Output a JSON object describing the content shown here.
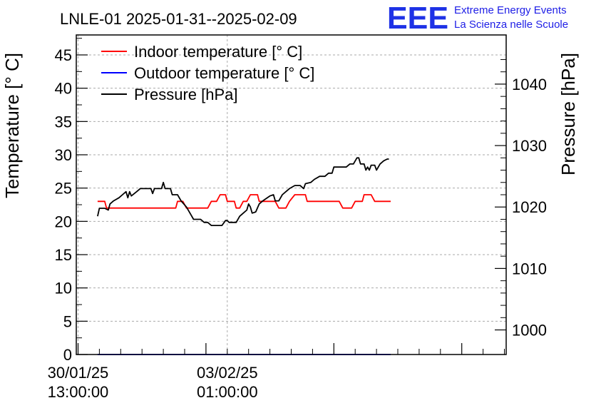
{
  "chart_data": {
    "type": "line",
    "title": "LNLE-01 2025-01-31--2025-02-09",
    "ylabel": "Temperature [° C]",
    "y2label": "Pressure [hPa]",
    "ylim": [
      0,
      48
    ],
    "y2lim": [
      996,
      1048
    ],
    "yticks": [
      0,
      5,
      10,
      15,
      20,
      25,
      30,
      35,
      40,
      45
    ],
    "y2ticks": [
      1000,
      1010,
      1020,
      1030,
      1040
    ],
    "xlim": [
      "2025-01-30 12:00",
      "2025-02-09 14:00"
    ],
    "xticks": [
      {
        "datetime": "2025-01-30 13:00",
        "label": [
          "30/01/25",
          "13:00:00"
        ]
      },
      {
        "datetime": "2025-02-03 01:00",
        "label": [
          "03/02/25",
          "01:00:00"
        ]
      }
    ],
    "grid": true,
    "legend_position": "top-left",
    "series": [
      {
        "name": "Indoor temperature [° C]",
        "color": "#ff0000",
        "axis": "left",
        "points": [
          [
            "2025-01-31 00:00",
            23
          ],
          [
            "2025-01-31 04:00",
            23
          ],
          [
            "2025-01-31 05:00",
            22
          ],
          [
            "2025-01-31 08:00",
            22
          ],
          [
            "2025-02-01 20:00",
            22
          ],
          [
            "2025-02-01 21:00",
            23
          ],
          [
            "2025-02-02 00:00",
            23
          ],
          [
            "2025-02-02 02:00",
            22
          ],
          [
            "2025-02-02 14:00",
            22
          ],
          [
            "2025-02-02 16:00",
            23
          ],
          [
            "2025-02-02 19:00",
            23
          ],
          [
            "2025-02-02 21:00",
            24
          ],
          [
            "2025-02-03 00:00",
            24
          ],
          [
            "2025-02-03 01:00",
            23
          ],
          [
            "2025-02-03 05:00",
            23
          ],
          [
            "2025-02-03 06:00",
            22
          ],
          [
            "2025-02-03 08:00",
            22
          ],
          [
            "2025-02-03 10:00",
            23
          ],
          [
            "2025-02-03 12:00",
            23
          ],
          [
            "2025-02-03 14:00",
            24
          ],
          [
            "2025-02-03 18:00",
            24
          ],
          [
            "2025-02-03 19:00",
            23
          ],
          [
            "2025-02-04 04:00",
            23
          ],
          [
            "2025-02-04 06:00",
            22
          ],
          [
            "2025-02-04 10:00",
            22
          ],
          [
            "2025-02-04 12:00",
            23
          ],
          [
            "2025-02-04 15:00",
            24
          ],
          [
            "2025-02-04 21:00",
            24
          ],
          [
            "2025-02-04 22:00",
            23
          ],
          [
            "2025-02-05 16:00",
            23
          ],
          [
            "2025-02-05 18:00",
            22
          ],
          [
            "2025-02-05 23:00",
            22
          ],
          [
            "2025-02-06 01:00",
            23
          ],
          [
            "2025-02-06 05:00",
            23
          ],
          [
            "2025-02-06 06:00",
            24
          ],
          [
            "2025-02-06 10:00",
            24
          ],
          [
            "2025-02-06 12:00",
            23
          ],
          [
            "2025-02-06 21:00",
            23
          ]
        ]
      },
      {
        "name": "Outdoor temperature [° C]",
        "color": "#0000ff",
        "axis": "left",
        "points": [
          [
            "2025-01-31 00:00",
            0
          ],
          [
            "2025-02-06 21:00",
            0
          ]
        ]
      },
      {
        "name": "Pressure [hPa]",
        "color": "#000000",
        "axis": "right",
        "points": [
          [
            "2025-01-31 00:00",
            1018.5
          ],
          [
            "2025-01-31 01:00",
            1019.8
          ],
          [
            "2025-01-31 04:00",
            1019.8
          ],
          [
            "2025-01-31 06:00",
            1019.5
          ],
          [
            "2025-01-31 07:00",
            1020.5
          ],
          [
            "2025-01-31 09:00",
            1021.0
          ],
          [
            "2025-01-31 12:00",
            1021.5
          ],
          [
            "2025-01-31 14:00",
            1022.0
          ],
          [
            "2025-01-31 16:00",
            1022.5
          ],
          [
            "2025-01-31 17:00",
            1021.5
          ],
          [
            "2025-01-31 18:00",
            1022.5
          ],
          [
            "2025-01-31 19:00",
            1021.8
          ],
          [
            "2025-01-31 22:00",
            1022.5
          ],
          [
            "2025-02-01 00:00",
            1023.0
          ],
          [
            "2025-02-01 06:00",
            1023.0
          ],
          [
            "2025-02-01 07:00",
            1022.2
          ],
          [
            "2025-02-01 08:00",
            1023.0
          ],
          [
            "2025-02-01 12:00",
            1023.0
          ],
          [
            "2025-02-01 13:00",
            1024.0
          ],
          [
            "2025-02-01 14:00",
            1023.0
          ],
          [
            "2025-02-01 17:00",
            1023.0
          ],
          [
            "2025-02-01 18:00",
            1022.0
          ],
          [
            "2025-02-01 21:00",
            1022.0
          ],
          [
            "2025-02-01 23:00",
            1021.0
          ],
          [
            "2025-02-02 02:00",
            1020.0
          ],
          [
            "2025-02-02 04:00",
            1019.0
          ],
          [
            "2025-02-02 06:00",
            1018.0
          ],
          [
            "2025-02-02 10:00",
            1018.0
          ],
          [
            "2025-02-02 12:00",
            1017.5
          ],
          [
            "2025-02-02 14:00",
            1017.5
          ],
          [
            "2025-02-02 16:00",
            1017.0
          ],
          [
            "2025-02-02 22:00",
            1017.0
          ],
          [
            "2025-02-03 00:00",
            1017.8
          ],
          [
            "2025-02-03 01:00",
            1017.8
          ],
          [
            "2025-02-03 02:00",
            1017.5
          ],
          [
            "2025-02-03 06:00",
            1017.5
          ],
          [
            "2025-02-03 08:00",
            1018.5
          ],
          [
            "2025-02-03 10:00",
            1019.0
          ],
          [
            "2025-02-03 12:00",
            1019.5
          ],
          [
            "2025-02-03 13:00",
            1020.5
          ],
          [
            "2025-02-03 14:00",
            1020.0
          ],
          [
            "2025-02-03 15:00",
            1019.0
          ],
          [
            "2025-02-03 17:00",
            1019.2
          ],
          [
            "2025-02-03 19:00",
            1020.5
          ],
          [
            "2025-02-03 21:00",
            1021.0
          ],
          [
            "2025-02-04 01:00",
            1021.8
          ],
          [
            "2025-02-04 03:00",
            1022.0
          ],
          [
            "2025-02-04 04:00",
            1021.0
          ],
          [
            "2025-02-04 06:00",
            1021.0
          ],
          [
            "2025-02-04 08:00",
            1022.0
          ],
          [
            "2025-02-04 10:00",
            1022.5
          ],
          [
            "2025-02-04 12:00",
            1023.0
          ],
          [
            "2025-02-04 15:00",
            1023.5
          ],
          [
            "2025-02-04 18:00",
            1023.5
          ],
          [
            "2025-02-04 20:00",
            1023.0
          ],
          [
            "2025-02-04 21:00",
            1023.8
          ],
          [
            "2025-02-05 00:00",
            1024.0
          ],
          [
            "2025-02-05 02:00",
            1024.5
          ],
          [
            "2025-02-05 05:00",
            1025.0
          ],
          [
            "2025-02-05 08:00",
            1025.0
          ],
          [
            "2025-02-05 10:00",
            1025.5
          ],
          [
            "2025-02-05 12:00",
            1025.5
          ],
          [
            "2025-02-05 13:00",
            1026.5
          ],
          [
            "2025-02-05 20:00",
            1026.5
          ],
          [
            "2025-02-05 22:00",
            1027.0
          ],
          [
            "2025-02-06 00:00",
            1027.0
          ],
          [
            "2025-02-06 02:00",
            1028.0
          ],
          [
            "2025-02-06 03:00",
            1028.0
          ],
          [
            "2025-02-06 04:00",
            1027.0
          ],
          [
            "2025-02-06 06:00",
            1027.0
          ],
          [
            "2025-02-06 07:00",
            1026.0
          ],
          [
            "2025-02-06 08:00",
            1026.5
          ],
          [
            "2025-02-06 09:00",
            1026.0
          ],
          [
            "2025-02-06 10:00",
            1026.8
          ],
          [
            "2025-02-06 12:00",
            1026.8
          ],
          [
            "2025-02-06 13:00",
            1026.0
          ],
          [
            "2025-02-06 15:00",
            1027.0
          ],
          [
            "2025-02-06 17:00",
            1027.5
          ],
          [
            "2025-02-06 19:00",
            1027.8
          ],
          [
            "2025-02-06 20:00",
            1027.8
          ]
        ]
      }
    ]
  },
  "logo": {
    "mark": "EEE",
    "line1": "Extreme Energy Events",
    "line2": "La Scienza nelle Scuole"
  }
}
